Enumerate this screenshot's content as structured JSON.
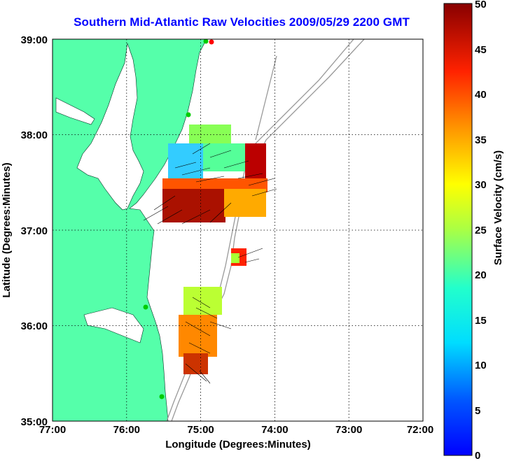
{
  "title": "Southern Mid-Atlantic Raw Velocities 2009/05/29 2200 GMT",
  "x_axis": {
    "label": "Longitude (Degrees:Minutes)",
    "ticks": [
      "77:00",
      "76:00",
      "75:00",
      "74:00",
      "73:00",
      "72:00"
    ]
  },
  "y_axis": {
    "label": "Latitude (Degrees:Minutes)",
    "ticks": [
      "39:00",
      "38:00",
      "37:00",
      "36:00",
      "35:00"
    ]
  },
  "colorbar": {
    "label": "Surface Velocity (cm/s)",
    "ticks": [
      "50",
      "45",
      "40",
      "35",
      "30",
      "25",
      "20",
      "15",
      "10",
      "5",
      "0"
    ],
    "min": 0,
    "max": 50,
    "colormap": "jet"
  },
  "colors": {
    "land": "#55ffaa",
    "title": "#0000ff",
    "bathymetry": "#999999",
    "stations": "#00cc00"
  },
  "chart_data": {
    "type": "map",
    "xlim": [
      -77,
      -72
    ],
    "ylim": [
      35,
      39
    ],
    "grid": true,
    "units": "cm/s"
  }
}
